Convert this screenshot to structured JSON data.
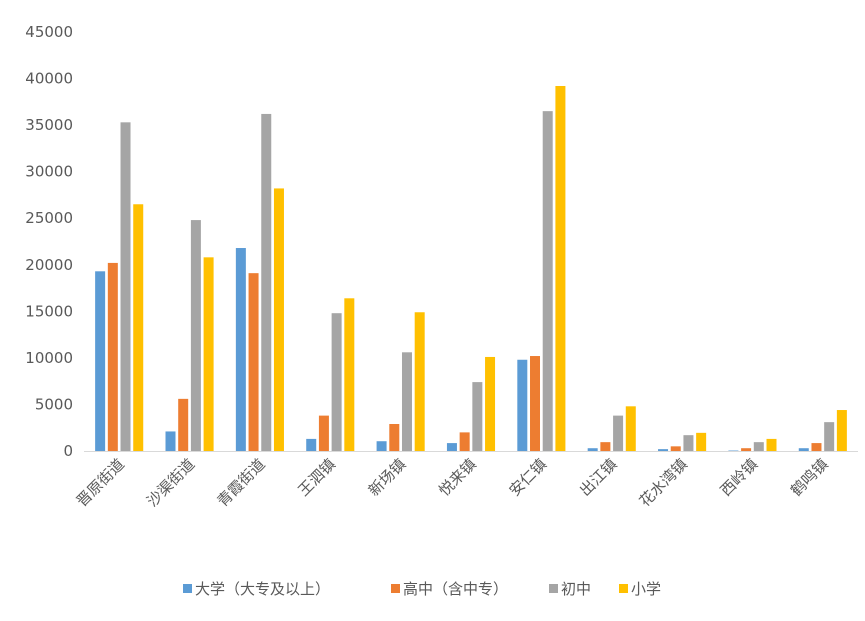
{
  "chart_data": {
    "type": "bar",
    "categories": [
      "晋原街道",
      "沙渠街道",
      "青霞街道",
      "王泗镇",
      "新场镇",
      "悦来镇",
      "安仁镇",
      "出江镇",
      "花水湾镇",
      "西岭镇",
      "鹤鸣镇"
    ],
    "series": [
      {
        "name": "大学（大专及以上）",
        "color": "#5B9BD5",
        "values": [
          19300,
          2100,
          21800,
          1300,
          1050,
          850,
          9800,
          300,
          200,
          50,
          300
        ]
      },
      {
        "name": "高中（含中专）",
        "color": "#ED7D31",
        "values": [
          20200,
          5600,
          19100,
          3800,
          2900,
          2000,
          10200,
          950,
          500,
          300,
          850
        ]
      },
      {
        "name": "初中",
        "color": "#A5A5A5",
        "values": [
          35300,
          24800,
          36200,
          14800,
          10600,
          7400,
          36500,
          3800,
          1700,
          950,
          3100
        ]
      },
      {
        "name": "小学",
        "color": "#FFC000",
        "values": [
          26500,
          20800,
          28200,
          16400,
          14900,
          10100,
          39200,
          4800,
          1950,
          1300,
          4400
        ]
      }
    ],
    "yticks": [
      "0",
      "5000",
      "10000",
      "15000",
      "20000",
      "25000",
      "30000",
      "35000",
      "40000",
      "45000"
    ],
    "ylim": [
      0,
      45000
    ],
    "grid": false,
    "legend_position": "bottom",
    "title": "",
    "xlabel": "",
    "ylabel": ""
  }
}
